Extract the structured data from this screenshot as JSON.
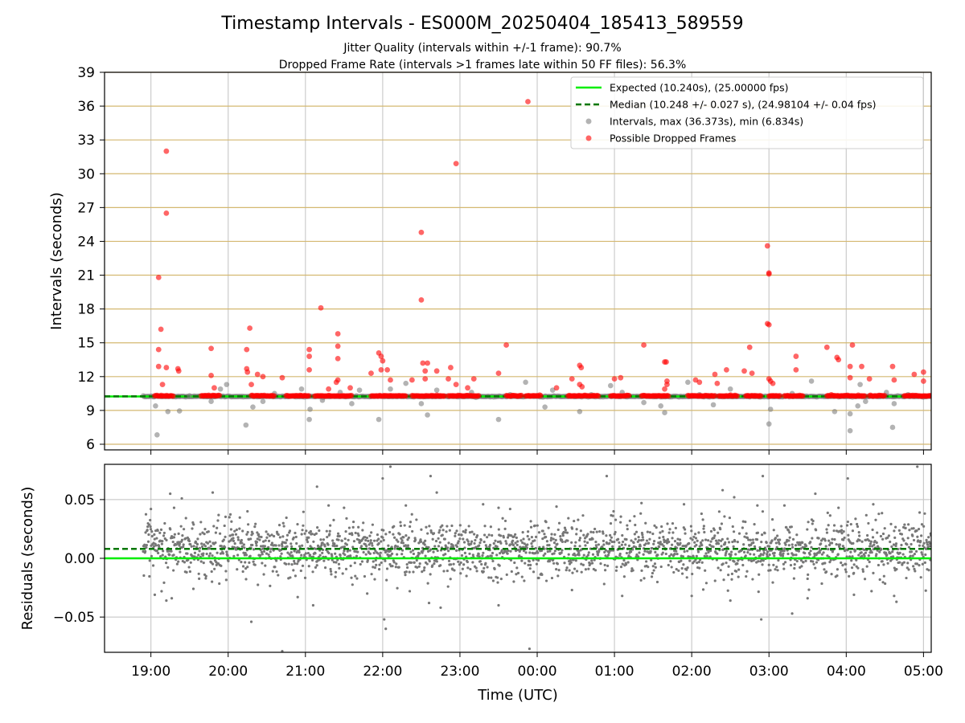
{
  "figure": {
    "title": "Timestamp Intervals - ES000M_20250404_185413_589559",
    "subtitle_1": "Jitter Quality (intervals within +/-1 frame): 90.7%",
    "subtitle_2": "Dropped Frame Rate (intervals >1 frames late within 50 FF files): 56.3%"
  },
  "colors": {
    "expected": "#00ee00",
    "median": "#007700",
    "intervals": "#808080",
    "dropped": "#ff0000",
    "hgrid_top": "#d4b870",
    "grid": "#cccccc"
  },
  "chart_data": [
    {
      "type": "scatter",
      "name": "intervals-panel",
      "xlabel": "",
      "ylabel": "Intervals (seconds)",
      "xlim": [
        18.4,
        29.1
      ],
      "ylim": [
        5.5,
        39
      ],
      "yticks": [
        6,
        9,
        12,
        15,
        18,
        21,
        24,
        27,
        30,
        33,
        36,
        39
      ],
      "ytick_labels": [
        "6",
        "9",
        "12",
        "15",
        "18",
        "21",
        "24",
        "27",
        "30",
        "33",
        "36",
        "39"
      ],
      "xticks": [
        19,
        20,
        21,
        22,
        23,
        24,
        25,
        26,
        27,
        28,
        29
      ],
      "grid": true,
      "legend_position": "top-right",
      "expected_value": 10.24,
      "median_value": 10.248,
      "legend": [
        {
          "label": "Expected (10.240s), (25.00000 fps)",
          "kind": "solid-line",
          "color": "#00ee00"
        },
        {
          "label": "Median (10.248 +/- 0.027 s), (24.98104 +/- 0.04 fps)",
          "kind": "dashed-line",
          "color": "#007700"
        },
        {
          "label": "Intervals, max (36.373s), min (6.834s)",
          "kind": "marker",
          "color": "#808080"
        },
        {
          "label": "Possible Dropped Frames",
          "kind": "marker",
          "color": "#ff0000"
        }
      ],
      "series": [
        {
          "name": "Intervals, max (36.373s), min (6.834s)",
          "baseline_range": [
            18.9,
            29.1
          ],
          "baseline_value": 10.24,
          "points": [
            [
              19.08,
              6.83
            ],
            [
              19.06,
              9.4
            ],
            [
              19.22,
              8.9
            ],
            [
              19.37,
              8.95
            ],
            [
              19.5,
              10.3
            ],
            [
              19.78,
              9.8
            ],
            [
              19.9,
              10.9
            ],
            [
              19.98,
              11.3
            ],
            [
              20.23,
              7.7
            ],
            [
              20.32,
              9.3
            ],
            [
              20.45,
              9.8
            ],
            [
              20.6,
              10.5
            ],
            [
              20.95,
              10.9
            ],
            [
              21.05,
              8.2
            ],
            [
              21.06,
              9.1
            ],
            [
              21.22,
              9.9
            ],
            [
              21.45,
              10.6
            ],
            [
              21.6,
              9.6
            ],
            [
              21.7,
              10.8
            ],
            [
              21.95,
              8.2
            ],
            [
              22.1,
              10.9
            ],
            [
              22.3,
              11.4
            ],
            [
              22.5,
              9.6
            ],
            [
              22.58,
              8.6
            ],
            [
              22.7,
              10.8
            ],
            [
              23.15,
              10.6
            ],
            [
              23.5,
              8.2
            ],
            [
              23.65,
              10.4
            ],
            [
              23.85,
              11.5
            ],
            [
              24.1,
              9.3
            ],
            [
              24.2,
              10.8
            ],
            [
              24.55,
              8.9
            ],
            [
              24.7,
              10.4
            ],
            [
              24.95,
              11.2
            ],
            [
              25.1,
              10.6
            ],
            [
              25.38,
              9.7
            ],
            [
              25.6,
              9.4
            ],
            [
              25.65,
              8.8
            ],
            [
              25.95,
              11.5
            ],
            [
              26.1,
              10.4
            ],
            [
              26.28,
              9.5
            ],
            [
              26.5,
              10.9
            ],
            [
              26.75,
              10.2
            ],
            [
              27.0,
              7.8
            ],
            [
              27.02,
              9.1
            ],
            [
              27.3,
              10.5
            ],
            [
              27.55,
              11.6
            ],
            [
              27.85,
              8.9
            ],
            [
              28.05,
              7.2
            ],
            [
              28.05,
              8.7
            ],
            [
              28.15,
              9.4
            ],
            [
              28.18,
              11.3
            ],
            [
              28.25,
              9.8
            ],
            [
              28.52,
              10.6
            ],
            [
              28.6,
              7.5
            ],
            [
              28.62,
              9.6
            ],
            [
              28.8,
              10.4
            ]
          ]
        },
        {
          "name": "Possible Dropped Frames",
          "clusters": [
            [
              19.05,
              19.3
            ],
            [
              19.65,
              19.9
            ],
            [
              20.3,
              20.6
            ],
            [
              20.75,
              21.05
            ],
            [
              21.12,
              21.6
            ],
            [
              21.85,
              22.3
            ],
            [
              22.38,
              22.8
            ],
            [
              22.85,
              23.25
            ],
            [
              23.6,
              23.8
            ],
            [
              23.85,
              24.05
            ],
            [
              24.4,
              24.8
            ],
            [
              24.95,
              25.2
            ],
            [
              25.35,
              25.7
            ],
            [
              25.95,
              26.3
            ],
            [
              26.35,
              26.6
            ],
            [
              26.7,
              26.9
            ],
            [
              27.0,
              27.15
            ],
            [
              27.2,
              27.45
            ],
            [
              27.75,
              28.25
            ],
            [
              28.3,
              28.5
            ],
            [
              28.75,
              29.1
            ]
          ],
          "points": [
            [
              19.1,
              20.8
            ],
            [
              19.13,
              16.2
            ],
            [
              19.2,
              32.0
            ],
            [
              19.2,
              26.5
            ],
            [
              19.1,
              14.4
            ],
            [
              19.1,
              12.9
            ],
            [
              19.2,
              12.8
            ],
            [
              19.35,
              12.7
            ],
            [
              19.36,
              12.5
            ],
            [
              19.15,
              11.3
            ],
            [
              19.78,
              14.5
            ],
            [
              19.78,
              12.1
            ],
            [
              19.82,
              11.0
            ],
            [
              20.24,
              14.4
            ],
            [
              20.24,
              12.7
            ],
            [
              20.25,
              12.4
            ],
            [
              20.28,
              16.3
            ],
            [
              20.3,
              11.3
            ],
            [
              20.38,
              12.2
            ],
            [
              20.45,
              12.0
            ],
            [
              20.7,
              11.9
            ],
            [
              21.05,
              14.4
            ],
            [
              21.05,
              13.8
            ],
            [
              21.05,
              12.6
            ],
            [
              21.2,
              18.1
            ],
            [
              21.3,
              10.9
            ],
            [
              21.4,
              11.5
            ],
            [
              21.42,
              15.8
            ],
            [
              21.42,
              14.7
            ],
            [
              21.42,
              13.6
            ],
            [
              21.42,
              11.7
            ],
            [
              21.58,
              11.0
            ],
            [
              21.85,
              12.3
            ],
            [
              21.95,
              14.1
            ],
            [
              21.98,
              13.8
            ],
            [
              21.98,
              12.6
            ],
            [
              22.0,
              13.4
            ],
            [
              22.06,
              12.6
            ],
            [
              22.1,
              11.7
            ],
            [
              22.38,
              11.7
            ],
            [
              22.5,
              24.8
            ],
            [
              22.5,
              18.8
            ],
            [
              22.52,
              13.2
            ],
            [
              22.55,
              12.5
            ],
            [
              22.58,
              13.2
            ],
            [
              22.55,
              11.8
            ],
            [
              22.7,
              12.5
            ],
            [
              22.85,
              11.8
            ],
            [
              22.88,
              12.8
            ],
            [
              22.95,
              30.9
            ],
            [
              22.95,
              11.3
            ],
            [
              23.1,
              11.0
            ],
            [
              23.18,
              11.8
            ],
            [
              23.5,
              12.3
            ],
            [
              23.6,
              14.8
            ],
            [
              23.88,
              36.4
            ],
            [
              24.25,
              11.0
            ],
            [
              24.45,
              11.8
            ],
            [
              24.55,
              13.0
            ],
            [
              24.57,
              12.8
            ],
            [
              24.55,
              11.3
            ],
            [
              24.58,
              11.1
            ],
            [
              25.0,
              11.8
            ],
            [
              25.08,
              11.9
            ],
            [
              25.38,
              14.8
            ],
            [
              25.65,
              13.3
            ],
            [
              25.67,
              13.3
            ],
            [
              25.68,
              11.6
            ],
            [
              25.68,
              11.3
            ],
            [
              25.65,
              10.9
            ],
            [
              26.05,
              11.7
            ],
            [
              26.1,
              11.5
            ],
            [
              26.3,
              12.2
            ],
            [
              26.33,
              11.4
            ],
            [
              26.45,
              12.6
            ],
            [
              26.68,
              12.5
            ],
            [
              26.75,
              14.6
            ],
            [
              26.78,
              12.3
            ],
            [
              26.98,
              23.6
            ],
            [
              27.0,
              21.2
            ],
            [
              27.0,
              21.1
            ],
            [
              26.98,
              16.7
            ],
            [
              27.0,
              16.6
            ],
            [
              27.0,
              11.8
            ],
            [
              27.02,
              11.6
            ],
            [
              27.05,
              11.4
            ],
            [
              27.35,
              13.8
            ],
            [
              27.35,
              12.6
            ],
            [
              27.75,
              14.6
            ],
            [
              27.88,
              13.7
            ],
            [
              27.9,
              13.5
            ],
            [
              28.05,
              12.9
            ],
            [
              28.05,
              11.9
            ],
            [
              28.08,
              14.8
            ],
            [
              28.2,
              12.9
            ],
            [
              28.3,
              11.8
            ],
            [
              28.6,
              12.9
            ],
            [
              28.62,
              11.7
            ],
            [
              28.88,
              12.2
            ],
            [
              29.0,
              12.4
            ],
            [
              29.0,
              11.6
            ]
          ]
        }
      ]
    },
    {
      "type": "scatter",
      "name": "residuals-panel",
      "xlabel": "Time (UTC)",
      "ylabel": "Residuals (seconds)",
      "xlim": [
        18.4,
        29.1
      ],
      "ylim": [
        -0.08,
        0.08
      ],
      "yticks": [
        -0.05,
        0.0,
        0.05
      ],
      "ytick_labels": [
        "−0.05",
        "0.00",
        "0.05"
      ],
      "xticks": [
        19,
        20,
        21,
        22,
        23,
        24,
        25,
        26,
        27,
        28,
        29
      ],
      "xtick_labels": [
        "19:00",
        "20:00",
        "21:00",
        "22:00",
        "23:00",
        "00:00",
        "01:00",
        "02:00",
        "03:00",
        "04:00",
        "05:00"
      ],
      "grid": true,
      "expected_value": 0.0,
      "median_value": 0.008,
      "series": [
        {
          "name": "Residuals",
          "x_range": [
            18.9,
            29.1
          ],
          "typical_spread": 0.012,
          "outliers": [
            [
              19.0,
              0.042
            ],
            [
              19.05,
              -0.031
            ],
            [
              19.2,
              -0.036
            ],
            [
              19.25,
              0.055
            ],
            [
              19.27,
              -0.034
            ],
            [
              19.3,
              0.043
            ],
            [
              19.4,
              0.051
            ],
            [
              19.55,
              -0.026
            ],
            [
              19.8,
              0.056
            ],
            [
              20.25,
              0.04
            ],
            [
              20.3,
              -0.054
            ],
            [
              20.7,
              -0.079
            ],
            [
              20.9,
              -0.033
            ],
            [
              21.15,
              0.061
            ],
            [
              21.1,
              -0.04
            ],
            [
              21.3,
              0.045
            ],
            [
              21.5,
              0.043
            ],
            [
              21.8,
              -0.03
            ],
            [
              22.0,
              0.068
            ],
            [
              22.02,
              -0.052
            ],
            [
              22.04,
              -0.06
            ],
            [
              22.1,
              0.078
            ],
            [
              22.3,
              0.045
            ],
            [
              22.35,
              -0.028
            ],
            [
              22.62,
              0.07
            ],
            [
              22.6,
              -0.038
            ],
            [
              22.7,
              0.056
            ],
            [
              22.75,
              -0.042
            ],
            [
              23.3,
              0.046
            ],
            [
              23.5,
              -0.04
            ],
            [
              23.5,
              0.043
            ],
            [
              23.65,
              0.042
            ],
            [
              23.9,
              -0.077
            ],
            [
              24.25,
              0.044
            ],
            [
              24.45,
              -0.027
            ],
            [
              24.9,
              0.07
            ],
            [
              25.1,
              -0.032
            ],
            [
              25.35,
              0.047
            ],
            [
              25.9,
              0.046
            ],
            [
              26.0,
              -0.032
            ],
            [
              26.4,
              0.058
            ],
            [
              26.5,
              -0.036
            ],
            [
              26.55,
              0.052
            ],
            [
              26.85,
              0.045
            ],
            [
              26.92,
              0.07
            ],
            [
              26.9,
              -0.052
            ],
            [
              27.2,
              0.045
            ],
            [
              27.3,
              -0.047
            ],
            [
              27.5,
              -0.034
            ],
            [
              27.6,
              0.055
            ],
            [
              27.9,
              0.043
            ],
            [
              28.02,
              0.068
            ],
            [
              28.1,
              -0.031
            ],
            [
              28.35,
              0.046
            ],
            [
              28.62,
              -0.032
            ],
            [
              28.65,
              -0.037
            ],
            [
              28.92,
              0.078
            ],
            [
              28.95,
              0.039
            ]
          ]
        }
      ]
    }
  ]
}
